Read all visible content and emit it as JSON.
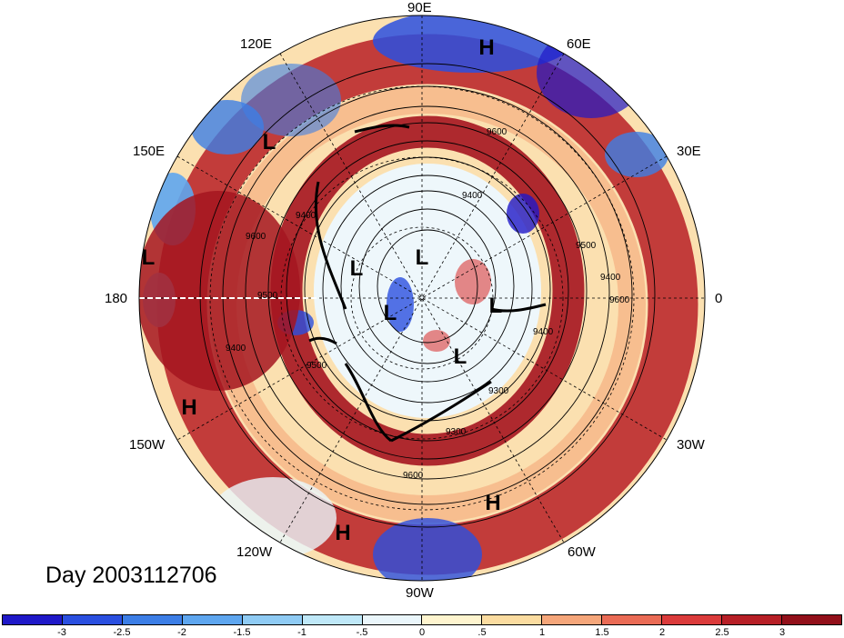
{
  "map": {
    "projection": "north-polar-stereographic",
    "longitude_labels": [
      {
        "id": "90e",
        "text": "90E"
      },
      {
        "id": "60e",
        "text": "60E"
      },
      {
        "id": "30e",
        "text": "30E"
      },
      {
        "id": "0",
        "text": "0"
      },
      {
        "id": "30w",
        "text": "30W"
      },
      {
        "id": "60w",
        "text": "60W"
      },
      {
        "id": "90w",
        "text": "90W"
      },
      {
        "id": "120w",
        "text": "120W"
      },
      {
        "id": "150w",
        "text": "150W"
      },
      {
        "id": "180",
        "text": "180"
      },
      {
        "id": "150e",
        "text": "150E"
      },
      {
        "id": "120e",
        "text": "120E"
      }
    ],
    "pressure_markers": [
      {
        "id": "h-top",
        "text": "H"
      },
      {
        "id": "l-150e",
        "text": "L"
      },
      {
        "id": "l-far-west",
        "text": "L"
      },
      {
        "id": "h-150w",
        "text": "H"
      },
      {
        "id": "h-120w",
        "text": "H"
      },
      {
        "id": "h-60w",
        "text": "H"
      },
      {
        "id": "l-center-1",
        "text": "L"
      },
      {
        "id": "l-center-2",
        "text": "L"
      },
      {
        "id": "l-center-3",
        "text": "L"
      },
      {
        "id": "l-center-4",
        "text": "L"
      },
      {
        "id": "l-center-5",
        "text": "L"
      }
    ],
    "contour_labels": [
      "9600",
      "9400",
      "9500",
      "9500",
      "9600",
      "9400",
      "9300",
      "9400",
      "9600",
      "9400",
      "9400",
      "9500",
      "9300",
      "9600"
    ],
    "day_label": "Day 2003112706"
  },
  "colorbar": {
    "ticks": [
      "-3",
      "-2.5",
      "-2",
      "-1.5",
      "-1",
      "-.5",
      "0",
      ".5",
      "1",
      "1.5",
      "2",
      "2.5",
      "3"
    ],
    "colors": [
      "#1f18c8",
      "#2a4fe0",
      "#3c7ee6",
      "#5ea6ef",
      "#8fcbf4",
      "#bfe8f8",
      "#eaf6fb",
      "#fff5cf",
      "#fbdca0",
      "#f5a67a",
      "#ea6b55",
      "#db3b3b",
      "#b71f26",
      "#92101a"
    ]
  }
}
